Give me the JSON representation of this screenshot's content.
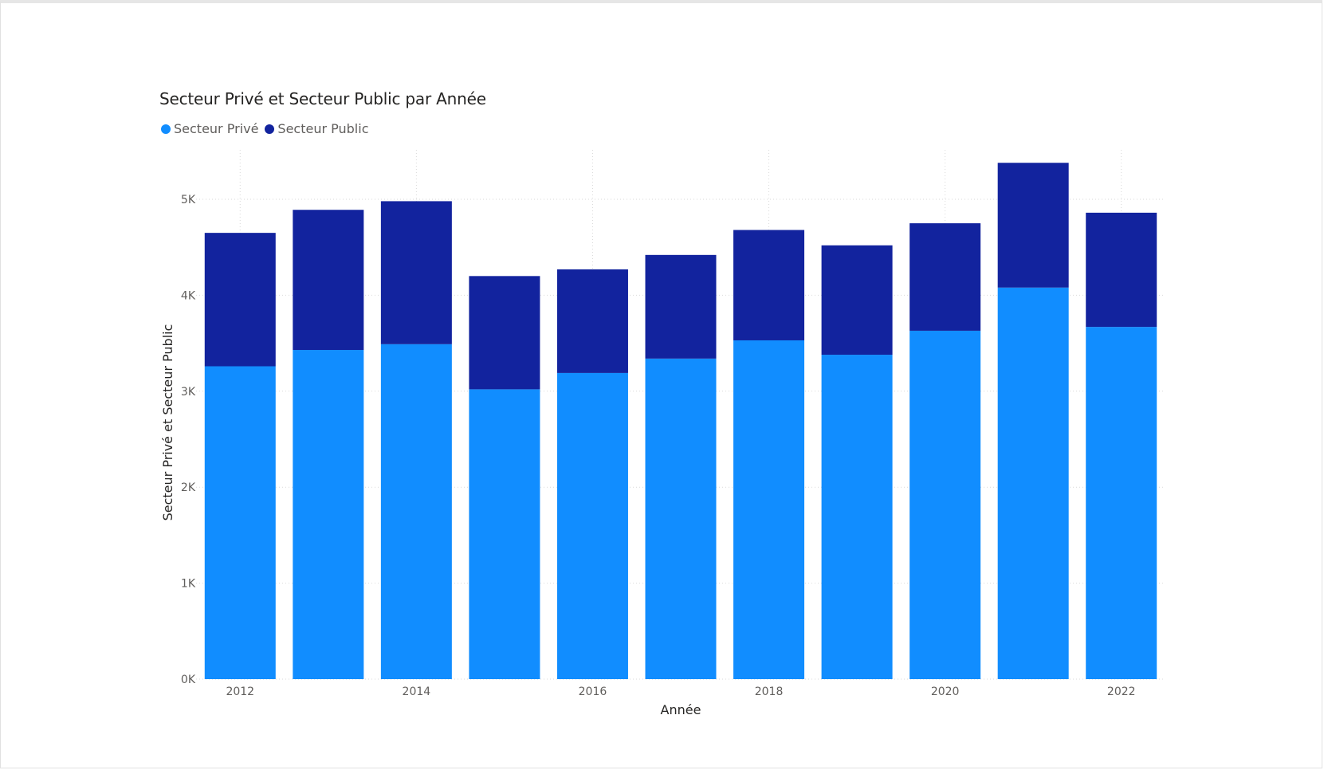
{
  "colors": {
    "prive": "#118dff",
    "public": "#12239e",
    "grid": "#d9d9d9"
  },
  "chart_data": {
    "type": "bar",
    "stacked": true,
    "title": "Secteur Privé et Secteur Public par Année",
    "xlabel": "Année",
    "ylabel": "Secteur Privé et Secteur Public",
    "categories": [
      "2012",
      "2013",
      "2014",
      "2015",
      "2016",
      "2017",
      "2018",
      "2019",
      "2020",
      "2021",
      "2022"
    ],
    "x_tick_labels": [
      "2012",
      "2014",
      "2016",
      "2018",
      "2020",
      "2022"
    ],
    "y_ticks": [
      0,
      1000,
      2000,
      3000,
      4000,
      5000
    ],
    "y_tick_labels": [
      "0K",
      "1K",
      "2K",
      "3K",
      "4K",
      "5K"
    ],
    "ylim": [
      0,
      5500
    ],
    "grid": true,
    "legend_position": "top-left",
    "series": [
      {
        "name": "Secteur Privé",
        "color": "#118dff",
        "values": [
          3260,
          3430,
          3490,
          3020,
          3190,
          3340,
          3530,
          3380,
          3630,
          4080,
          3670
        ]
      },
      {
        "name": "Secteur Public",
        "color": "#12239e",
        "values": [
          1390,
          1460,
          1490,
          1180,
          1080,
          1080,
          1150,
          1140,
          1120,
          1300,
          1190
        ]
      }
    ]
  }
}
